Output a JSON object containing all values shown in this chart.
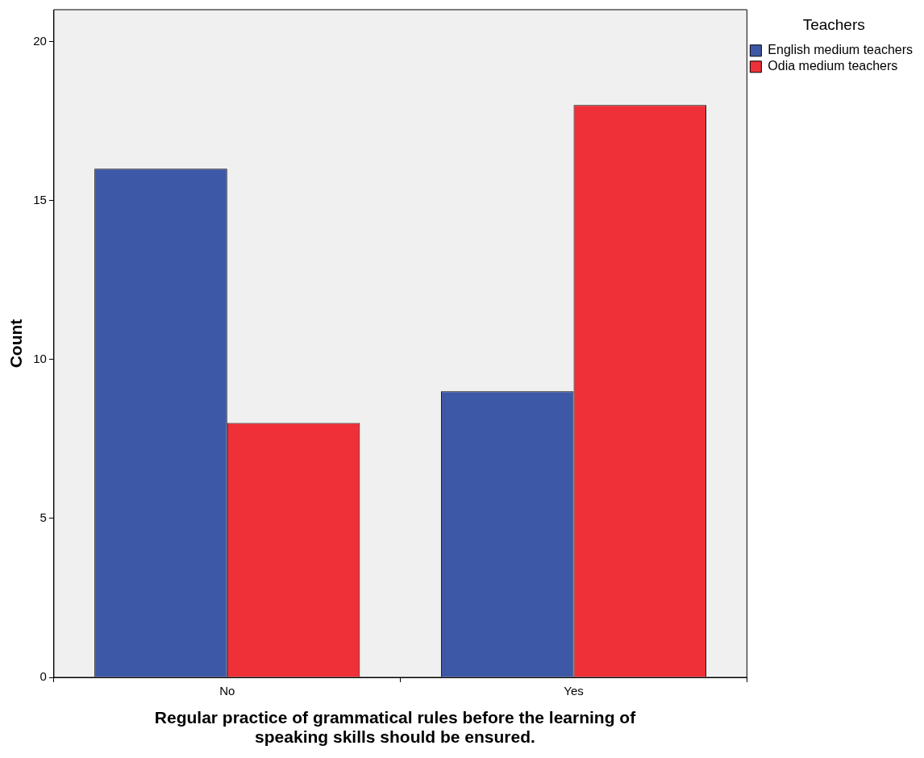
{
  "chart_data": {
    "type": "bar",
    "xlabel": "Regular practice of grammatical rules before the learning of speaking skills should be ensured.",
    "ylabel": "Count",
    "legend_title": "Teachers",
    "categories": [
      "No",
      "Yes"
    ],
    "series": [
      {
        "name": "English medium teachers",
        "color": "#3e58a8",
        "values": [
          16,
          9
        ]
      },
      {
        "name": "Odia medium teachers",
        "color": "#ef3038",
        "values": [
          8,
          18
        ]
      }
    ],
    "ylim": [
      0,
      21
    ],
    "yticks": [
      0,
      5,
      10,
      15,
      20
    ],
    "grid": false,
    "legend": "top right"
  }
}
